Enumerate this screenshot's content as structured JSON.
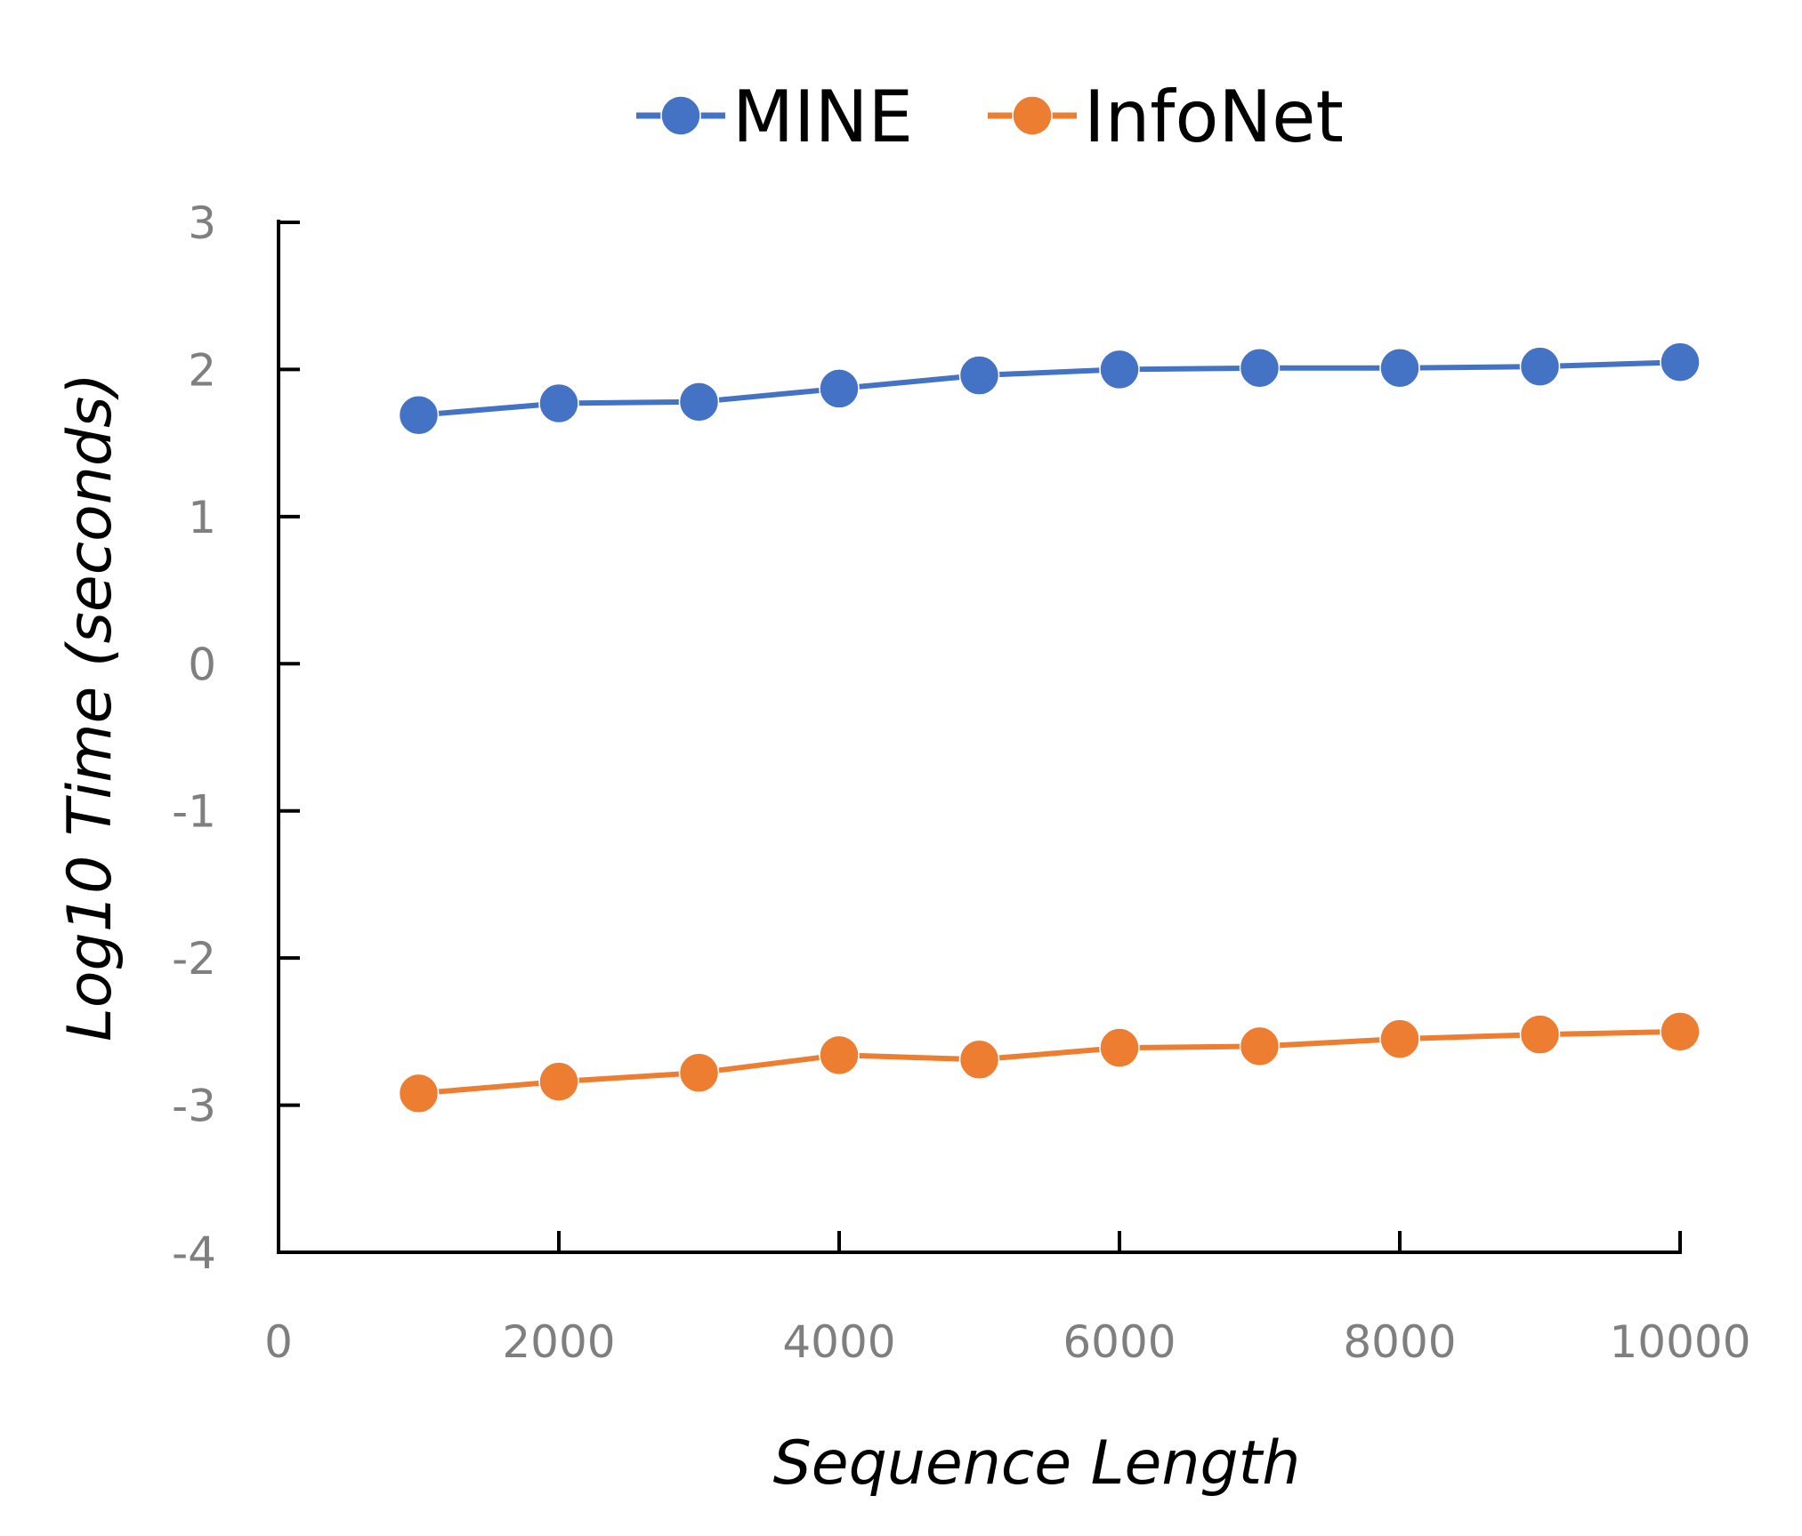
{
  "chart_data": {
    "type": "line",
    "xlabel": "Sequence Length",
    "ylabel": "Log10 Time (seconds)",
    "xlim": [
      0,
      10000
    ],
    "ylim": [
      -4,
      3
    ],
    "x_ticks": [
      0,
      2000,
      4000,
      6000,
      8000,
      10000
    ],
    "y_ticks": [
      3,
      2,
      1,
      0,
      -1,
      -2,
      -3,
      -4
    ],
    "legend_position": "top-center",
    "grid": false,
    "x": [
      1000,
      2000,
      3000,
      4000,
      5000,
      6000,
      7000,
      8000,
      9000,
      10000
    ],
    "series": [
      {
        "name": "MINE",
        "color": "#4472C4",
        "values": [
          1.69,
          1.77,
          1.78,
          1.87,
          1.96,
          2.0,
          2.01,
          2.01,
          2.02,
          2.05
        ]
      },
      {
        "name": "InfoNet",
        "color": "#ED7D31",
        "values": [
          -2.92,
          -2.84,
          -2.78,
          -2.66,
          -2.69,
          -2.61,
          -2.6,
          -2.55,
          -2.52,
          -2.5
        ]
      }
    ]
  }
}
